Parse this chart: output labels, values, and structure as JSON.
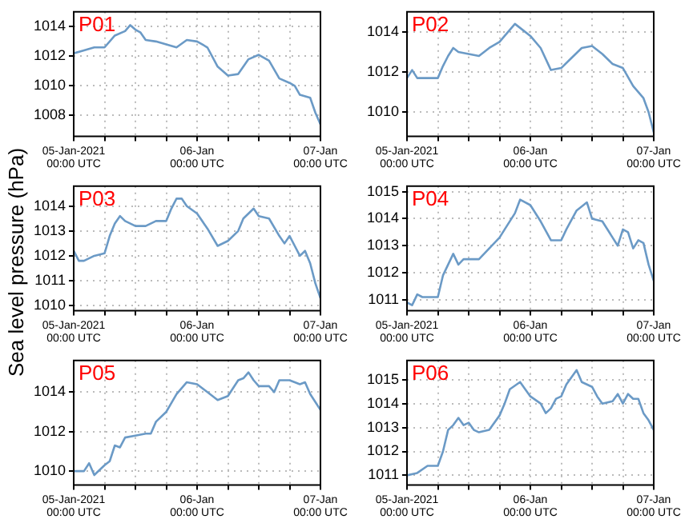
{
  "chart_data": [
    {
      "type": "line",
      "title": "P01",
      "ylabel": "Sea level pressure (hPa)",
      "color": "#6b9ac6",
      "grid": true,
      "xlim": [
        "2021-01-05T00:00",
        "2021-01-07T00:00"
      ],
      "ylim": [
        1006.6,
        1015
      ],
      "yticks": [
        1008,
        1010,
        1012,
        1014
      ],
      "xticks": [
        {
          "value": "2021-01-05T00:00",
          "label": "05-Jan-2021\n00:00 UTC"
        },
        {
          "value": "2021-01-05T06:00",
          "label": null
        },
        {
          "value": "2021-01-05T12:00",
          "label": null
        },
        {
          "value": "2021-01-05T18:00",
          "label": null
        },
        {
          "value": "2021-01-06T00:00",
          "label": "06-Jan\n00:00 UTC"
        },
        {
          "value": "2021-01-06T06:00",
          "label": null
        },
        {
          "value": "2021-01-06T12:00",
          "label": null
        },
        {
          "value": "2021-01-06T18:00",
          "label": null
        },
        {
          "value": "2021-01-07T00:00",
          "label": "07-Jan\n00:00 UTC"
        }
      ],
      "x": [
        "2021-01-05T00:00",
        "2021-01-05T02:00",
        "2021-01-05T04:00",
        "2021-01-05T06:00",
        "2021-01-05T08:00",
        "2021-01-05T10:00",
        "2021-01-05T11:00",
        "2021-01-05T12:00",
        "2021-01-05T13:00",
        "2021-01-05T14:00",
        "2021-01-05T16:00",
        "2021-01-05T18:00",
        "2021-01-05T20:00",
        "2021-01-05T22:00",
        "2021-01-06T00:00",
        "2021-01-06T02:00",
        "2021-01-06T04:00",
        "2021-01-06T06:00",
        "2021-01-06T08:00",
        "2021-01-06T10:00",
        "2021-01-06T12:00",
        "2021-01-06T14:00",
        "2021-01-06T16:00",
        "2021-01-06T18:00",
        "2021-01-06T19:00",
        "2021-01-06T20:00",
        "2021-01-06T22:00",
        "2021-01-06T23:00",
        "2021-01-07T00:00"
      ],
      "values": [
        1012.2,
        1012.4,
        1012.6,
        1012.6,
        1013.4,
        1013.7,
        1014.1,
        1013.8,
        1013.6,
        1013.1,
        1013.0,
        1012.8,
        1012.6,
        1013.1,
        1013.0,
        1012.6,
        1011.3,
        1010.7,
        1010.8,
        1011.8,
        1012.1,
        1011.7,
        1010.5,
        1010.2,
        1010.0,
        1009.4,
        1009.2,
        1008.2,
        1007.4
      ]
    },
    {
      "type": "line",
      "title": "P02",
      "color": "#6b9ac6",
      "grid": true,
      "xlim": [
        "2021-01-05T00:00",
        "2021-01-07T00:00"
      ],
      "ylim": [
        1008.8,
        1015
      ],
      "yticks": [
        1010,
        1012,
        1014
      ],
      "xticks": [
        {
          "value": "2021-01-05T00:00",
          "label": "05-Jan-2021\n00:00 UTC"
        },
        {
          "value": "2021-01-05T06:00",
          "label": null
        },
        {
          "value": "2021-01-05T12:00",
          "label": null
        },
        {
          "value": "2021-01-05T18:00",
          "label": null
        },
        {
          "value": "2021-01-06T00:00",
          "label": "06-Jan\n00:00 UTC"
        },
        {
          "value": "2021-01-06T06:00",
          "label": null
        },
        {
          "value": "2021-01-06T12:00",
          "label": null
        },
        {
          "value": "2021-01-06T18:00",
          "label": null
        },
        {
          "value": "2021-01-07T00:00",
          "label": "07-Jan\n00:00 UTC"
        }
      ],
      "x": [
        "2021-01-05T00:00",
        "2021-01-05T01:00",
        "2021-01-05T02:00",
        "2021-01-05T04:00",
        "2021-01-05T06:00",
        "2021-01-05T07:00",
        "2021-01-05T08:00",
        "2021-01-05T09:00",
        "2021-01-05T10:00",
        "2021-01-05T12:00",
        "2021-01-05T14:00",
        "2021-01-05T16:00",
        "2021-01-05T18:00",
        "2021-01-05T20:00",
        "2021-01-05T21:00",
        "2021-01-05T22:00",
        "2021-01-06T00:00",
        "2021-01-06T02:00",
        "2021-01-06T04:00",
        "2021-01-06T06:00",
        "2021-01-06T08:00",
        "2021-01-06T10:00",
        "2021-01-06T12:00",
        "2021-01-06T14:00",
        "2021-01-06T16:00",
        "2021-01-06T18:00",
        "2021-01-06T20:00",
        "2021-01-06T22:00",
        "2021-01-06T23:00",
        "2021-01-07T00:00"
      ],
      "values": [
        1011.7,
        1012.1,
        1011.7,
        1011.7,
        1011.7,
        1012.3,
        1012.8,
        1013.2,
        1013.0,
        1012.9,
        1012.8,
        1013.2,
        1013.5,
        1014.1,
        1014.4,
        1014.2,
        1013.8,
        1013.2,
        1012.1,
        1012.2,
        1012.7,
        1013.2,
        1013.3,
        1012.9,
        1012.4,
        1012.2,
        1011.3,
        1010.7,
        1010.0,
        1009.0
      ]
    },
    {
      "type": "line",
      "title": "P03",
      "color": "#6b9ac6",
      "grid": true,
      "xlim": [
        "2021-01-05T00:00",
        "2021-01-07T00:00"
      ],
      "ylim": [
        1009.8,
        1014.8
      ],
      "yticks": [
        1010,
        1011,
        1012,
        1013,
        1014
      ],
      "xticks": [
        {
          "value": "2021-01-05T00:00",
          "label": "05-Jan-2021\n00:00 UTC"
        },
        {
          "value": "2021-01-05T06:00",
          "label": null
        },
        {
          "value": "2021-01-05T12:00",
          "label": null
        },
        {
          "value": "2021-01-05T18:00",
          "label": null
        },
        {
          "value": "2021-01-06T00:00",
          "label": "06-Jan\n00:00 UTC"
        },
        {
          "value": "2021-01-06T06:00",
          "label": null
        },
        {
          "value": "2021-01-06T12:00",
          "label": null
        },
        {
          "value": "2021-01-06T18:00",
          "label": null
        },
        {
          "value": "2021-01-07T00:00",
          "label": "07-Jan\n00:00 UTC"
        }
      ],
      "x": [
        "2021-01-05T00:00",
        "2021-01-05T01:00",
        "2021-01-05T02:00",
        "2021-01-05T04:00",
        "2021-01-05T06:00",
        "2021-01-05T07:00",
        "2021-01-05T08:00",
        "2021-01-05T09:00",
        "2021-01-05T10:00",
        "2021-01-05T12:00",
        "2021-01-05T14:00",
        "2021-01-05T16:00",
        "2021-01-05T18:00",
        "2021-01-05T19:00",
        "2021-01-05T20:00",
        "2021-01-05T21:00",
        "2021-01-05T22:00",
        "2021-01-06T00:00",
        "2021-01-06T02:00",
        "2021-01-06T04:00",
        "2021-01-06T06:00",
        "2021-01-06T08:00",
        "2021-01-06T09:00",
        "2021-01-06T11:00",
        "2021-01-06T12:00",
        "2021-01-06T14:00",
        "2021-01-06T16:00",
        "2021-01-06T17:00",
        "2021-01-06T18:00",
        "2021-01-06T19:00",
        "2021-01-06T20:00",
        "2021-01-06T21:00",
        "2021-01-06T22:00",
        "2021-01-06T23:00",
        "2021-01-07T00:00"
      ],
      "values": [
        1012.2,
        1011.8,
        1011.8,
        1012.0,
        1012.1,
        1012.8,
        1013.3,
        1013.6,
        1013.4,
        1013.2,
        1013.2,
        1013.4,
        1013.4,
        1013.9,
        1014.3,
        1014.3,
        1014.0,
        1013.7,
        1013.1,
        1012.4,
        1012.6,
        1013.0,
        1013.5,
        1013.9,
        1013.6,
        1013.5,
        1012.8,
        1012.5,
        1012.8,
        1012.4,
        1012.0,
        1012.2,
        1011.7,
        1010.9,
        1010.3
      ]
    },
    {
      "type": "line",
      "title": "P04",
      "color": "#6b9ac6",
      "grid": true,
      "xlim": [
        "2021-01-05T00:00",
        "2021-01-07T00:00"
      ],
      "ylim": [
        1010.6,
        1015.2
      ],
      "yticks": [
        1011,
        1012,
        1013,
        1014,
        1015
      ],
      "xticks": [
        {
          "value": "2021-01-05T00:00",
          "label": "05-Jan-2021\n00:00 UTC"
        },
        {
          "value": "2021-01-05T06:00",
          "label": null
        },
        {
          "value": "2021-01-05T12:00",
          "label": null
        },
        {
          "value": "2021-01-05T18:00",
          "label": null
        },
        {
          "value": "2021-01-06T00:00",
          "label": "06-Jan\n00:00 UTC"
        },
        {
          "value": "2021-01-06T06:00",
          "label": null
        },
        {
          "value": "2021-01-06T12:00",
          "label": null
        },
        {
          "value": "2021-01-06T18:00",
          "label": null
        },
        {
          "value": "2021-01-07T00:00",
          "label": "07-Jan\n00:00 UTC"
        }
      ],
      "x": [
        "2021-01-05T00:00",
        "2021-01-05T01:00",
        "2021-01-05T02:00",
        "2021-01-05T03:00",
        "2021-01-05T04:00",
        "2021-01-05T06:00",
        "2021-01-05T07:00",
        "2021-01-05T08:00",
        "2021-01-05T09:00",
        "2021-01-05T10:00",
        "2021-01-05T11:00",
        "2021-01-05T14:00",
        "2021-01-05T16:00",
        "2021-01-05T18:00",
        "2021-01-05T19:00",
        "2021-01-05T21:00",
        "2021-01-05T22:00",
        "2021-01-06T00:00",
        "2021-01-06T02:00",
        "2021-01-06T04:00",
        "2021-01-06T06:00",
        "2021-01-06T07:00",
        "2021-01-06T09:00",
        "2021-01-06T11:00",
        "2021-01-06T12:00",
        "2021-01-06T14:00",
        "2021-01-06T16:00",
        "2021-01-06T17:00",
        "2021-01-06T18:00",
        "2021-01-06T19:00",
        "2021-01-06T20:00",
        "2021-01-06T21:00",
        "2021-01-06T22:00",
        "2021-01-06T23:00",
        "2021-01-07T00:00"
      ],
      "values": [
        1010.9,
        1010.8,
        1011.2,
        1011.1,
        1011.1,
        1011.1,
        1011.9,
        1012.3,
        1012.7,
        1012.3,
        1012.5,
        1012.5,
        1012.9,
        1013.3,
        1013.6,
        1014.2,
        1014.7,
        1014.5,
        1013.9,
        1013.2,
        1013.2,
        1013.6,
        1014.3,
        1014.6,
        1014.0,
        1013.9,
        1013.3,
        1013.0,
        1013.6,
        1013.5,
        1012.9,
        1013.2,
        1013.1,
        1012.3,
        1011.7
      ]
    },
    {
      "type": "line",
      "title": "P05",
      "color": "#6b9ac6",
      "grid": true,
      "xlim": [
        "2021-01-05T00:00",
        "2021-01-07T00:00"
      ],
      "ylim": [
        1009.3,
        1015.6
      ],
      "yticks": [
        1010,
        1012,
        1014
      ],
      "xticks": [
        {
          "value": "2021-01-05T00:00",
          "label": "05-Jan-2021\n00:00 UTC"
        },
        {
          "value": "2021-01-05T06:00",
          "label": null
        },
        {
          "value": "2021-01-05T12:00",
          "label": null
        },
        {
          "value": "2021-01-05T18:00",
          "label": null
        },
        {
          "value": "2021-01-06T00:00",
          "label": "06-Jan\n00:00 UTC"
        },
        {
          "value": "2021-01-06T06:00",
          "label": null
        },
        {
          "value": "2021-01-06T12:00",
          "label": null
        },
        {
          "value": "2021-01-06T18:00",
          "label": null
        },
        {
          "value": "2021-01-07T00:00",
          "label": "07-Jan\n00:00 UTC"
        }
      ],
      "x": [
        "2021-01-05T00:00",
        "2021-01-05T02:00",
        "2021-01-05T03:00",
        "2021-01-05T04:00",
        "2021-01-05T06:00",
        "2021-01-05T07:00",
        "2021-01-05T08:00",
        "2021-01-05T09:00",
        "2021-01-05T10:00",
        "2021-01-05T12:00",
        "2021-01-05T14:00",
        "2021-01-05T15:00",
        "2021-01-05T16:00",
        "2021-01-05T18:00",
        "2021-01-05T20:00",
        "2021-01-05T22:00",
        "2021-01-06T00:00",
        "2021-01-06T02:00",
        "2021-01-06T04:00",
        "2021-01-06T06:00",
        "2021-01-06T08:00",
        "2021-01-06T09:00",
        "2021-01-06T10:00",
        "2021-01-06T11:00",
        "2021-01-06T12:00",
        "2021-01-06T14:00",
        "2021-01-06T15:00",
        "2021-01-06T16:00",
        "2021-01-06T18:00",
        "2021-01-06T20:00",
        "2021-01-06T21:00",
        "2021-01-06T22:00",
        "2021-01-07T00:00"
      ],
      "values": [
        1010.0,
        1010.0,
        1010.4,
        1009.8,
        1010.3,
        1010.5,
        1011.3,
        1011.2,
        1011.7,
        1011.8,
        1011.9,
        1011.9,
        1012.5,
        1013.0,
        1013.9,
        1014.5,
        1014.4,
        1014.0,
        1013.6,
        1013.8,
        1014.6,
        1014.7,
        1015.0,
        1014.6,
        1014.3,
        1014.3,
        1014.0,
        1014.6,
        1014.6,
        1014.4,
        1014.5,
        1013.9,
        1013.1
      ]
    },
    {
      "type": "line",
      "title": "P06",
      "color": "#6b9ac6",
      "grid": true,
      "xlim": [
        "2021-01-05T00:00",
        "2021-01-07T00:00"
      ],
      "ylim": [
        1010.6,
        1015.8
      ],
      "yticks": [
        1011,
        1012,
        1013,
        1014,
        1015
      ],
      "xticks": [
        {
          "value": "2021-01-05T00:00",
          "label": "05-Jan-2021\n00:00 UTC"
        },
        {
          "value": "2021-01-05T06:00",
          "label": null
        },
        {
          "value": "2021-01-05T12:00",
          "label": null
        },
        {
          "value": "2021-01-05T18:00",
          "label": null
        },
        {
          "value": "2021-01-06T00:00",
          "label": "06-Jan\n00:00 UTC"
        },
        {
          "value": "2021-01-06T06:00",
          "label": null
        },
        {
          "value": "2021-01-06T12:00",
          "label": null
        },
        {
          "value": "2021-01-06T18:00",
          "label": null
        },
        {
          "value": "2021-01-07T00:00",
          "label": "07-Jan\n00:00 UTC"
        }
      ],
      "x": [
        "2021-01-05T00:00",
        "2021-01-05T02:00",
        "2021-01-05T04:00",
        "2021-01-05T06:00",
        "2021-01-05T07:00",
        "2021-01-05T08:00",
        "2021-01-05T09:00",
        "2021-01-05T10:00",
        "2021-01-05T11:00",
        "2021-01-05T12:00",
        "2021-01-05T13:00",
        "2021-01-05T14:00",
        "2021-01-05T16:00",
        "2021-01-05T18:00",
        "2021-01-05T19:00",
        "2021-01-05T20:00",
        "2021-01-05T22:00",
        "2021-01-05T23:00",
        "2021-01-06T00:00",
        "2021-01-06T02:00",
        "2021-01-06T03:00",
        "2021-01-06T04:00",
        "2021-01-06T05:00",
        "2021-01-06T06:00",
        "2021-01-06T07:00",
        "2021-01-06T09:00",
        "2021-01-06T10:00",
        "2021-01-06T12:00",
        "2021-01-06T13:00",
        "2021-01-06T14:00",
        "2021-01-06T16:00",
        "2021-01-06T17:00",
        "2021-01-06T18:00",
        "2021-01-06T19:00",
        "2021-01-06T20:00",
        "2021-01-06T21:00",
        "2021-01-06T22:00",
        "2021-01-06T23:00",
        "2021-01-07T00:00"
      ],
      "values": [
        1011.0,
        1011.1,
        1011.4,
        1011.4,
        1012.0,
        1012.9,
        1013.1,
        1013.4,
        1013.1,
        1013.2,
        1012.9,
        1012.8,
        1012.9,
        1013.5,
        1014.0,
        1014.6,
        1014.9,
        1014.6,
        1014.3,
        1014.0,
        1013.6,
        1013.8,
        1014.2,
        1014.3,
        1014.8,
        1015.4,
        1014.9,
        1014.7,
        1014.3,
        1014.0,
        1014.1,
        1014.4,
        1014.0,
        1014.4,
        1014.2,
        1014.2,
        1013.6,
        1013.3,
        1012.9
      ]
    }
  ]
}
